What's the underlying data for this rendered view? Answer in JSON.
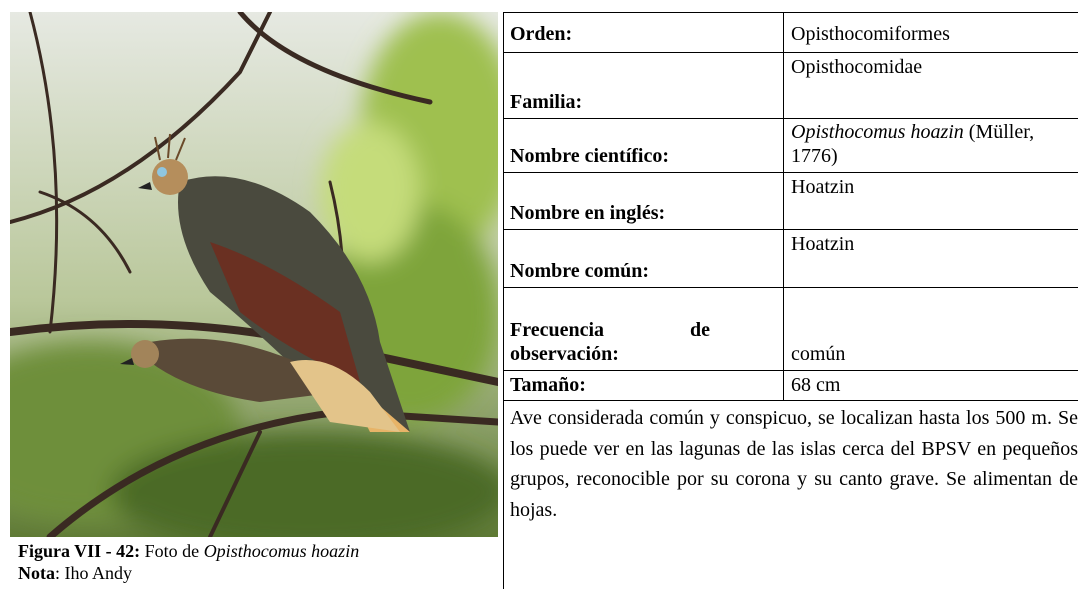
{
  "figure": {
    "caption": {
      "label": "Figura VII - 42:",
      "text": "Foto de",
      "species": "Opisthocomus hoazin"
    },
    "note": {
      "label": "Nota",
      "text": ": Iho Andy"
    }
  },
  "table": {
    "rows": [
      {
        "label": "Orden:",
        "value": "Opisthocomiformes"
      },
      {
        "label": "Familia:",
        "value": "Opisthocomidae"
      },
      {
        "label": "Nombre científico:",
        "value": {
          "name": "Opisthocomus hoazin",
          "author": "(Müller, 1776)"
        }
      },
      {
        "label": "Nombre en inglés:",
        "value": "Hoatzin"
      },
      {
        "label": "Nombre común:",
        "value": "Hoatzin"
      },
      {
        "label": "Frecuencia de observación:",
        "value": "común"
      },
      {
        "label": "Tamaño:",
        "value": "68 cm"
      }
    ]
  },
  "description": "Ave considerada común y conspicuo, se localizan hasta los 500 m. Se los puede ver en las lagunas de las islas cerca del BPSV en pequeños grupos, reconocible por su corona y su canto grave. Se alimentan de hojas."
}
